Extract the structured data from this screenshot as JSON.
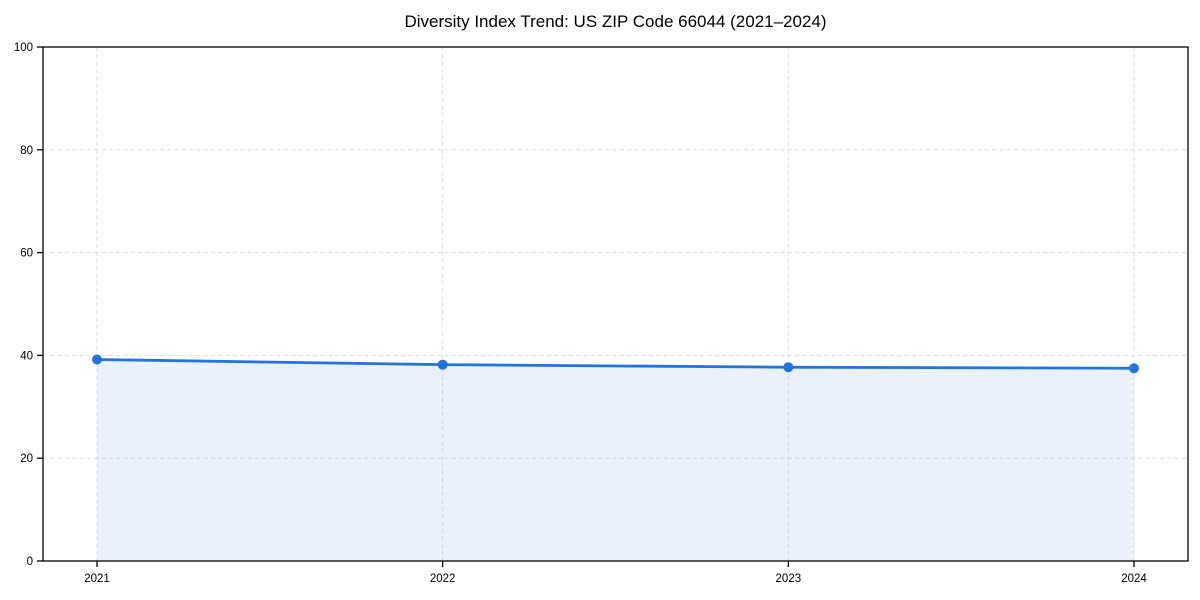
{
  "chart_data": {
    "type": "area",
    "title": "Diversity Index Trend: US ZIP Code 66044 (2021–2024)",
    "series_name": "Diversity Index",
    "categories": [
      "2021",
      "2022",
      "2023",
      "2024"
    ],
    "values": [
      39.2,
      38.2,
      37.7,
      37.5
    ],
    "xlabel": "",
    "ylabel": "",
    "ylim": [
      0,
      100
    ],
    "yticks": [
      0,
      20,
      40,
      60,
      80,
      100
    ],
    "grid": "dashed",
    "legend_position": "none",
    "colors": {
      "line": "#2173E2",
      "marker": "#2173E2",
      "fill": "rgba(33, 115, 226, 0.10)",
      "grid": "#dedede",
      "axis": "#000000",
      "tick_text": "#000000",
      "title_text": "#000000",
      "background": "#ffffff"
    }
  }
}
